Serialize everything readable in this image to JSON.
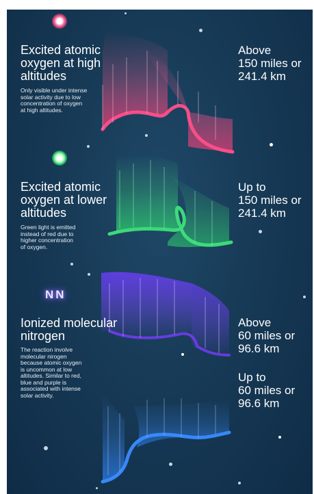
{
  "sections": [
    {
      "icon": "oxygen-atom-red-icon",
      "title": "Excited atomic\noxygen at high\naltitudes",
      "description": "Only visible under intense\nsolar activity due to low\nconcentration of oxygen\nat high altitudes.",
      "altitude": "Above\n150 miles or\n241.4 km",
      "color": "#ff4f8a"
    },
    {
      "icon": "oxygen-atom-green-icon",
      "title": "Excited atomic\noxygen at lower\naltitudes",
      "description": "Green light is emitted\ninstead of red due to\nhigher concentration\nof oxygen.",
      "altitude": "Up to\n150 miles or\n241.4 km",
      "color": "#3fe07a"
    },
    {
      "icon": "nitrogen-molecule-icon",
      "badge_text": "NN",
      "title": "Ionized molecular\nnitrogen",
      "description": "The reaction involve\nmolecular nirogen\nbecause atomic oxygen\nis uncommon at low\naltitudes. Similar to red,\nblue and purple is\nassociated with intense\nsolar activity.",
      "altitude_upper": "Above\n60 miles or\n96.6 km",
      "altitude_lower": "Up to\n60 miles or\n96.6 km",
      "color_upper": "#8a4dff",
      "color_lower": "#3a8cff"
    }
  ]
}
